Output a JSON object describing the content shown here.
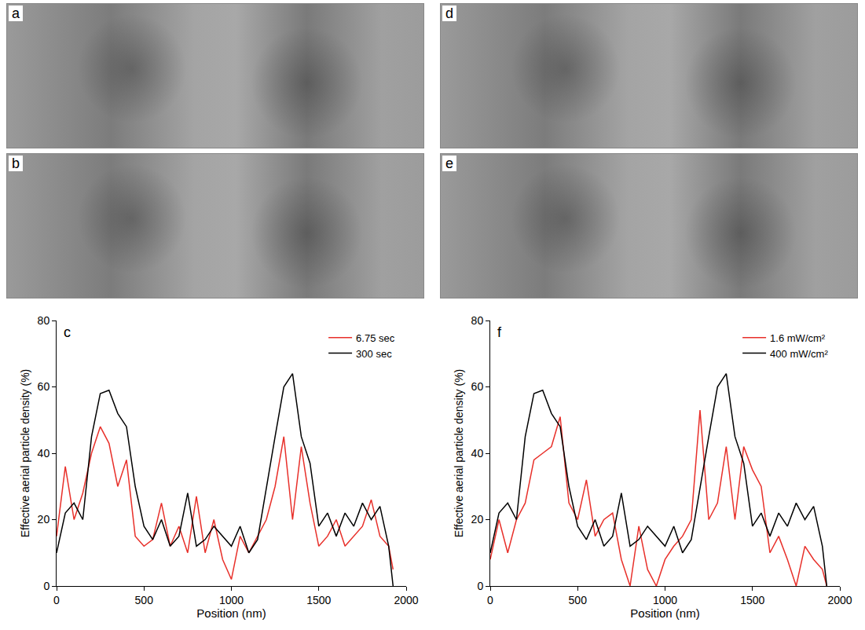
{
  "image_panels": [
    {
      "label": "a"
    },
    {
      "label": "b"
    },
    {
      "label": "d"
    },
    {
      "label": "e"
    }
  ],
  "chart_data": [
    {
      "type": "line",
      "panel": "c",
      "x_label": "Position (nm)",
      "y_label": "Effective aerial particle density (%)",
      "xlim": [
        0,
        2000
      ],
      "xticks": [
        0,
        500,
        1000,
        1500,
        2000
      ],
      "ylim": [
        0,
        80
      ],
      "yticks": [
        0,
        20,
        40,
        60,
        80
      ],
      "legend": "top-right",
      "grid": false,
      "x": [
        0,
        50,
        100,
        150,
        200,
        250,
        300,
        350,
        400,
        450,
        500,
        550,
        600,
        650,
        700,
        750,
        800,
        850,
        900,
        950,
        1000,
        1050,
        1100,
        1150,
        1200,
        1250,
        1300,
        1350,
        1400,
        1450,
        1500,
        1550,
        1600,
        1650,
        1700,
        1750,
        1800,
        1850,
        1900,
        1925
      ],
      "series": [
        {
          "name": "6.75 sec",
          "color": "#e8302a",
          "values": [
            15,
            36,
            20,
            28,
            40,
            48,
            43,
            30,
            38,
            15,
            12,
            14,
            25,
            12,
            18,
            10,
            27,
            10,
            20,
            8,
            2,
            15,
            10,
            15,
            20,
            30,
            45,
            20,
            42,
            25,
            12,
            15,
            20,
            12,
            15,
            18,
            26,
            15,
            12,
            5
          ]
        },
        {
          "name": "300 sec",
          "color": "#000000",
          "values": [
            10,
            22,
            25,
            20,
            45,
            58,
            59,
            52,
            48,
            30,
            18,
            14,
            20,
            12,
            15,
            28,
            12,
            14,
            18,
            15,
            12,
            18,
            10,
            14,
            30,
            45,
            60,
            64,
            45,
            37,
            18,
            22,
            15,
            22,
            18,
            25,
            20,
            24,
            12,
            0
          ]
        }
      ]
    },
    {
      "type": "line",
      "panel": "f",
      "x_label": "Position (nm)",
      "y_label": "Effective aerial particle density (%)",
      "xlim": [
        0,
        2000
      ],
      "xticks": [
        0,
        500,
        1000,
        1500,
        2000
      ],
      "ylim": [
        0,
        80
      ],
      "yticks": [
        0,
        20,
        40,
        60,
        80
      ],
      "legend": "top-right",
      "grid": false,
      "x": [
        0,
        50,
        100,
        150,
        200,
        250,
        300,
        350,
        400,
        450,
        500,
        550,
        600,
        650,
        700,
        750,
        800,
        850,
        900,
        950,
        1000,
        1050,
        1100,
        1150,
        1200,
        1250,
        1300,
        1350,
        1400,
        1450,
        1500,
        1550,
        1600,
        1650,
        1700,
        1750,
        1800,
        1850,
        1900,
        1925
      ],
      "series": [
        {
          "name": "1.6 mW/cm²",
          "color": "#e8302a",
          "values": [
            8,
            20,
            10,
            20,
            25,
            38,
            40,
            42,
            51,
            25,
            20,
            32,
            15,
            20,
            22,
            8,
            0,
            18,
            5,
            0,
            8,
            12,
            15,
            20,
            53,
            20,
            25,
            42,
            20,
            42,
            35,
            30,
            10,
            15,
            8,
            0,
            12,
            8,
            5,
            0
          ]
        },
        {
          "name": "400 mW/cm²",
          "color": "#000000",
          "values": [
            10,
            22,
            25,
            20,
            45,
            58,
            59,
            52,
            48,
            30,
            18,
            14,
            20,
            12,
            15,
            28,
            12,
            14,
            18,
            15,
            12,
            18,
            10,
            14,
            30,
            45,
            60,
            64,
            45,
            37,
            18,
            22,
            15,
            22,
            18,
            25,
            20,
            24,
            12,
            0
          ]
        }
      ]
    }
  ]
}
